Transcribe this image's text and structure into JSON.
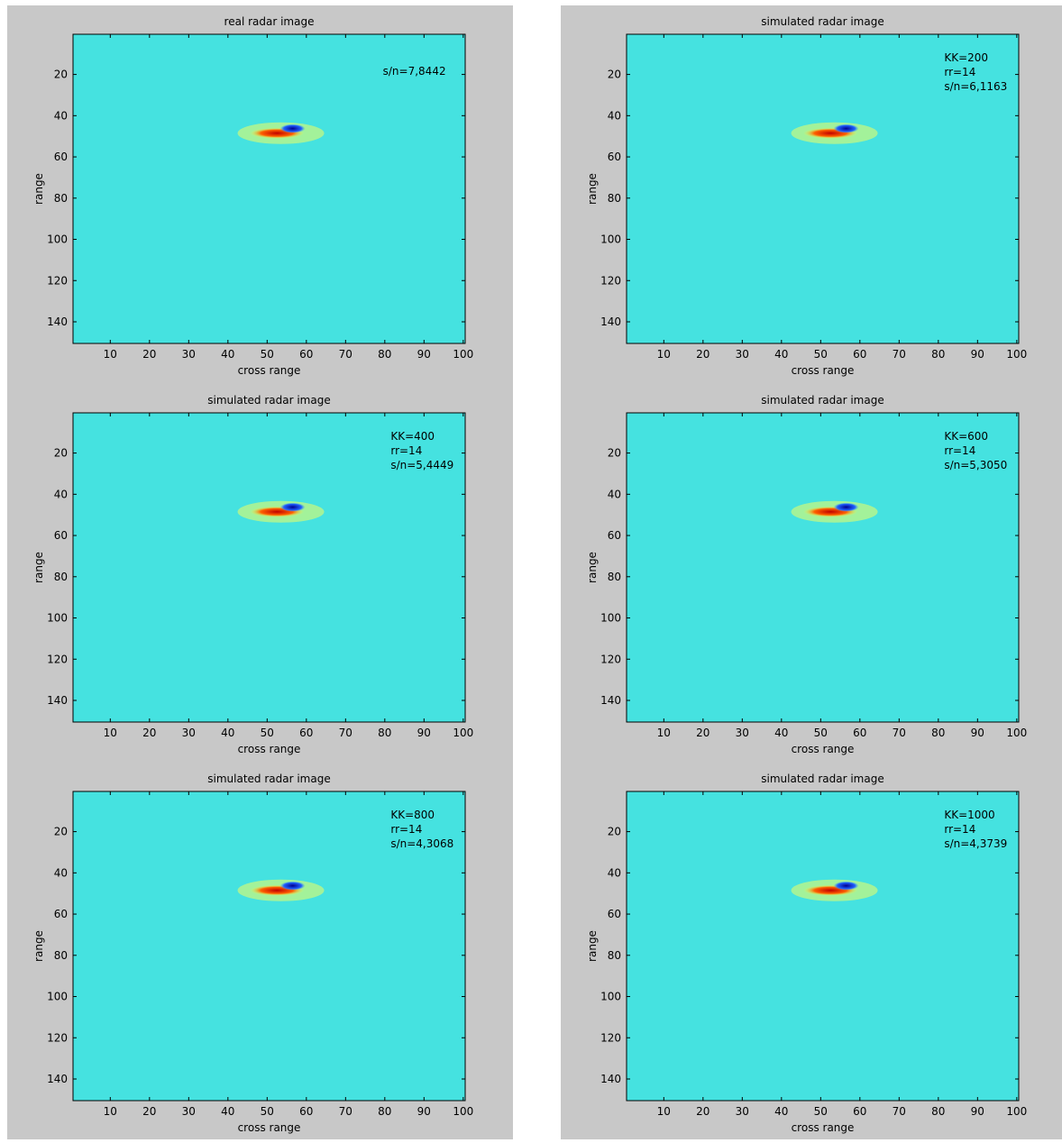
{
  "chart_data": [
    {
      "type": "heatmap",
      "title": "real radar image",
      "xlabel": "cross range",
      "ylabel": "range",
      "annotation": [
        "s/n=7,8442"
      ],
      "xlim": [
        0.5,
        100.5
      ],
      "ylim": [
        0.5,
        150.5
      ],
      "y_reversed": true,
      "xticks": [
        10,
        20,
        30,
        40,
        50,
        60,
        70,
        80,
        90,
        100
      ],
      "yticks": [
        20,
        40,
        60,
        80,
        100,
        120,
        140
      ]
    },
    {
      "type": "heatmap",
      "title": "simulated radar image",
      "xlabel": "cross range",
      "ylabel": "range",
      "annotation": [
        "KK=200",
        "rr=14",
        "s/n=6,1163"
      ],
      "xlim": [
        0.5,
        100.5
      ],
      "ylim": [
        0.5,
        150.5
      ],
      "y_reversed": true,
      "xticks": [
        10,
        20,
        30,
        40,
        50,
        60,
        70,
        80,
        90,
        100
      ],
      "yticks": [
        20,
        40,
        60,
        80,
        100,
        120,
        140
      ]
    },
    {
      "type": "heatmap",
      "title": "simulated radar image",
      "xlabel": "cross range",
      "ylabel": "range",
      "annotation": [
        "KK=400",
        "rr=14",
        "s/n=5,4449"
      ],
      "xlim": [
        0.5,
        100.5
      ],
      "ylim": [
        0.5,
        150.5
      ],
      "y_reversed": true,
      "xticks": [
        10,
        20,
        30,
        40,
        50,
        60,
        70,
        80,
        90,
        100
      ],
      "yticks": [
        20,
        40,
        60,
        80,
        100,
        120,
        140
      ]
    },
    {
      "type": "heatmap",
      "title": "simulated radar image",
      "xlabel": "cross range",
      "ylabel": "range",
      "annotation": [
        "KK=600",
        "rr=14",
        "s/n=5,3050"
      ],
      "xlim": [
        0.5,
        100.5
      ],
      "ylim": [
        0.5,
        150.5
      ],
      "y_reversed": true,
      "xticks": [
        10,
        20,
        30,
        40,
        50,
        60,
        70,
        80,
        90,
        100
      ],
      "yticks": [
        20,
        40,
        60,
        80,
        100,
        120,
        140
      ]
    },
    {
      "type": "heatmap",
      "title": "simulated radar image",
      "xlabel": "cross range",
      "ylabel": "range",
      "annotation": [
        "KK=800",
        "rr=14",
        "s/n=4,3068"
      ],
      "xlim": [
        0.5,
        100.5
      ],
      "ylim": [
        0.5,
        150.5
      ],
      "y_reversed": true,
      "xticks": [
        10,
        20,
        30,
        40,
        50,
        60,
        70,
        80,
        90,
        100
      ],
      "yticks": [
        20,
        40,
        60,
        80,
        100,
        120,
        140
      ]
    },
    {
      "type": "heatmap",
      "title": "simulated radar image",
      "xlabel": "cross range",
      "ylabel": "range",
      "annotation": [
        "KK=1000",
        "rr=14",
        "s/n=4,3739"
      ],
      "xlim": [
        0.5,
        100.5
      ],
      "ylim": [
        0.5,
        150.5
      ],
      "y_reversed": true,
      "xticks": [
        10,
        20,
        30,
        40,
        50,
        60,
        70,
        80,
        90,
        100
      ],
      "yticks": [
        20,
        40,
        60,
        80,
        100,
        120,
        140
      ]
    }
  ]
}
